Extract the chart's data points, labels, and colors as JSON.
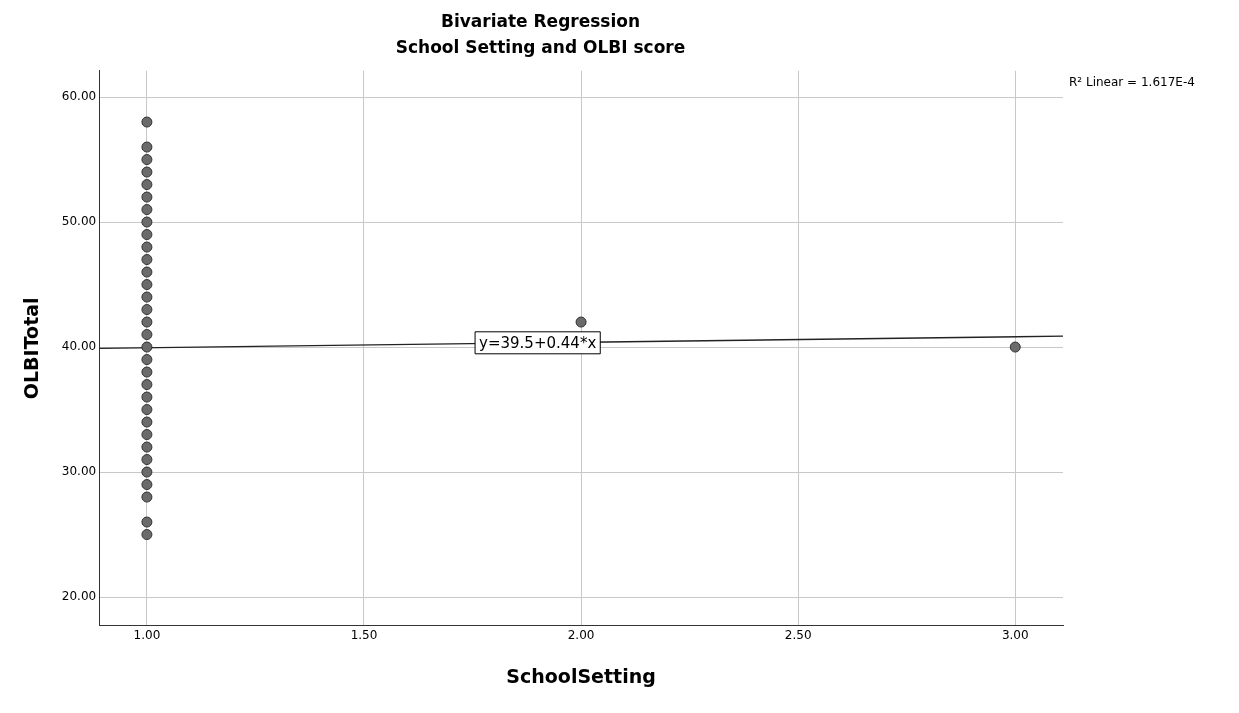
{
  "chart_data": {
    "type": "scatter",
    "title": "Bivariate Regression",
    "subtitle": "School Setting and OLBI score",
    "xlabel": "SchoolSetting",
    "ylabel": "OLBITotal",
    "series": [
      {
        "color": "#6b6b6b",
        "marker": "circle",
        "x": [
          1,
          1,
          1,
          1,
          1,
          1,
          1,
          1,
          1,
          1,
          1,
          1,
          1,
          1,
          1,
          1,
          1,
          1,
          1,
          1,
          1,
          1,
          1,
          1,
          1,
          1,
          1,
          1,
          1,
          1,
          1,
          1,
          2,
          3
        ],
        "values": [
          58,
          56,
          55,
          54,
          53,
          52,
          51,
          50,
          49,
          48,
          47,
          46,
          45,
          44,
          43,
          42,
          41,
          40,
          39,
          38,
          37,
          36,
          35,
          34,
          33,
          32,
          31,
          30,
          29,
          28,
          26,
          25,
          42,
          40
        ]
      },
      {
        "type": "line",
        "color": "#222222",
        "marker": "none",
        "x": [
          0.89,
          3.11
        ],
        "values": [
          39.89,
          40.87
        ]
      }
    ],
    "xlim": [
      0.89,
      3.11
    ],
    "xticks": [
      {
        "value": 1,
        "label": "1.00"
      },
      {
        "value": 1.5,
        "label": "1.50"
      },
      {
        "value": 2,
        "label": "2.00"
      },
      {
        "value": 2.5,
        "label": "2.50"
      },
      {
        "value": 3,
        "label": "3.00"
      }
    ],
    "ylim": [
      17.7,
      62.1
    ],
    "yticks": [
      {
        "value": 20,
        "label": "20.00"
      },
      {
        "value": 30,
        "label": "30.00"
      },
      {
        "value": 40,
        "label": "40.00"
      },
      {
        "value": 50,
        "label": "50.00"
      },
      {
        "value": 60,
        "label": "60.00"
      }
    ],
    "grid": true,
    "legend": false,
    "annotations": [
      {
        "text": "y=39.5+0.44*x",
        "x": 1.9,
        "y": 40.34
      },
      "R² Linear = 1.617E-4"
    ]
  }
}
